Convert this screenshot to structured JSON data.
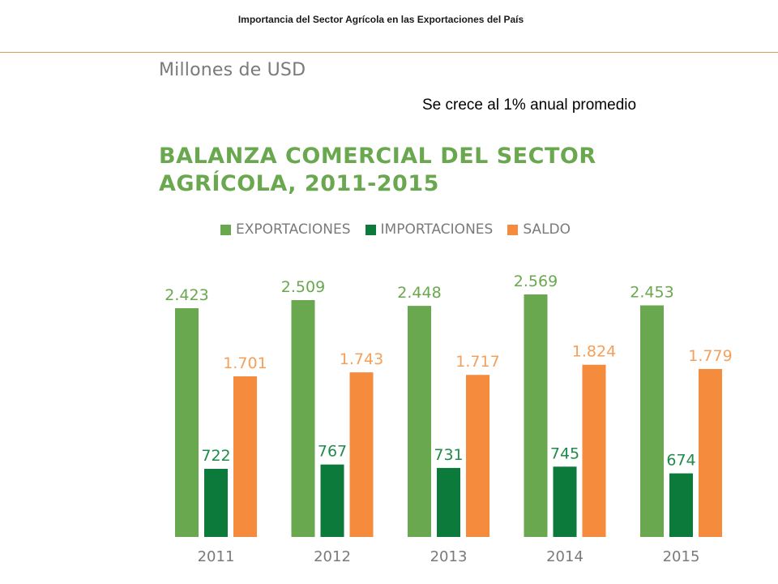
{
  "header": {
    "title": "Importancia del Sector Agrícola en las Exportaciones del País"
  },
  "unit_label": "Millones de USD",
  "note": "Se crece al 1% anual promedio",
  "chart_data": {
    "type": "bar",
    "title_lines": [
      "BALANZA COMERCIAL DEL SECTOR",
      "AGRÍCOLA, 2011-2015"
    ],
    "categories": [
      "2011",
      "2012",
      "2013",
      "2014",
      "2015"
    ],
    "series": [
      {
        "name": "EXPORTACIONES",
        "color": "#6aa84f",
        "label_color": "#6aa84f",
        "values": [
          2423,
          2509,
          2448,
          2569,
          2453
        ],
        "labels": [
          "2.423",
          "2.509",
          "2.448",
          "2.569",
          "2.453"
        ]
      },
      {
        "name": "IMPORTACIONES",
        "color": "#0b7a3b",
        "label_color": "#1f8a4a",
        "values": [
          722,
          767,
          731,
          745,
          674
        ],
        "labels": [
          "722",
          "767",
          "731",
          "745",
          "674"
        ]
      },
      {
        "name": "SALDO",
        "color": "#f58b3c",
        "label_color": "#f5a05a",
        "values": [
          1701,
          1743,
          1717,
          1824,
          1779
        ],
        "labels": [
          "1.701",
          "1.743",
          "1.717",
          "1.824",
          "1.779"
        ]
      }
    ],
    "ylim": [
      0,
      2569
    ],
    "grid": false,
    "legend_position": "top"
  }
}
